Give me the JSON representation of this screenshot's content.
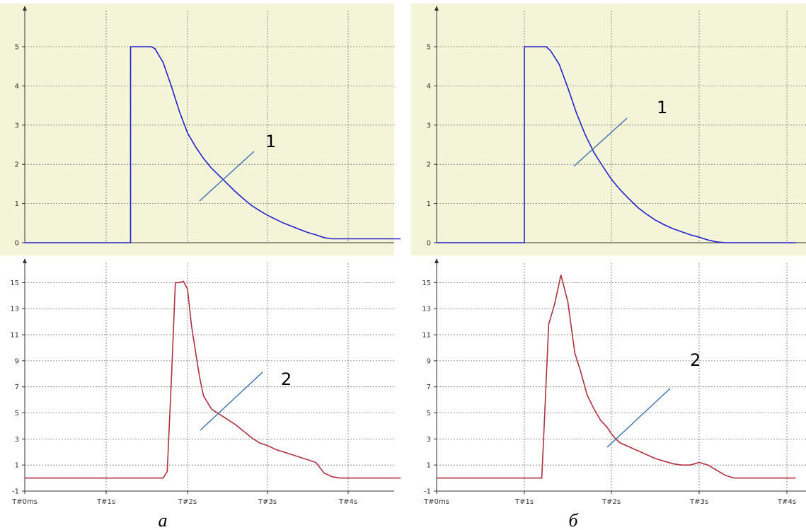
{
  "chart_data": [
    {
      "panel": "a",
      "upper": {
        "type": "line",
        "color": "#2222cc",
        "background": "#f4f4d8",
        "ylim": [
          0,
          5
        ],
        "yticks": [
          "0",
          "1",
          "2",
          "3",
          "4",
          "5"
        ],
        "xlim": [
          0,
          4.65
        ],
        "grid": true,
        "x": [
          0,
          1.3,
          1.3,
          1.55,
          1.6,
          1.7,
          1.8,
          1.9,
          2.0,
          2.1,
          2.2,
          2.3,
          2.4,
          2.5,
          2.6,
          2.7,
          2.8,
          2.9,
          3.0,
          3.1,
          3.2,
          3.3,
          3.4,
          3.5,
          3.6,
          3.7,
          3.8,
          3.9,
          4.0,
          4.65
        ],
        "values": [
          0,
          0,
          5,
          5,
          4.95,
          4.6,
          4.0,
          3.35,
          2.8,
          2.45,
          2.15,
          1.9,
          1.7,
          1.5,
          1.3,
          1.12,
          0.95,
          0.82,
          0.7,
          0.6,
          0.5,
          0.42,
          0.34,
          0.26,
          0.2,
          0.13,
          0.1,
          0.1,
          0.1,
          0.1
        ],
        "series_label": "1"
      },
      "lower": {
        "type": "line",
        "color": "#b03040",
        "background": "#ffffff",
        "ylim": [
          -1,
          16
        ],
        "yticks": [
          "-1",
          "1",
          "3",
          "5",
          "7",
          "9",
          "11",
          "13",
          "15"
        ],
        "xticks": [
          "T#0ms",
          "T#1s",
          "T#2s",
          "T#3s",
          "T#4s"
        ],
        "xlim": [
          0,
          4.65
        ],
        "grid": true,
        "x": [
          0,
          1.7,
          1.75,
          1.8,
          1.85,
          1.9,
          1.95,
          2.0,
          2.05,
          2.1,
          2.15,
          2.2,
          2.3,
          2.4,
          2.5,
          2.6,
          2.7,
          2.8,
          2.9,
          3.0,
          3.1,
          3.2,
          3.3,
          3.4,
          3.5,
          3.6,
          3.7,
          3.8,
          3.9,
          4.0,
          4.65
        ],
        "values": [
          0,
          0,
          0.5,
          7.3,
          15,
          15,
          15.1,
          14.5,
          11.7,
          9.7,
          7.8,
          6.3,
          5.3,
          4.9,
          4.5,
          4.1,
          3.6,
          3.1,
          2.7,
          2.5,
          2.2,
          2.0,
          1.8,
          1.6,
          1.4,
          1.2,
          0.4,
          0.1,
          0,
          0,
          0
        ],
        "series_label": "2"
      },
      "caption": "а"
    },
    {
      "panel": "b",
      "upper": {
        "type": "line",
        "color": "#2222cc",
        "background": "#f4f4d8",
        "ylim": [
          0,
          5
        ],
        "yticks": [
          "0",
          "1",
          "2",
          "3",
          "4",
          "5"
        ],
        "xlim": [
          0,
          4.1
        ],
        "grid": true,
        "x": [
          0,
          1.0,
          1.0,
          1.25,
          1.3,
          1.4,
          1.5,
          1.6,
          1.7,
          1.8,
          1.9,
          2.0,
          2.1,
          2.2,
          2.3,
          2.4,
          2.5,
          2.6,
          2.7,
          2.8,
          2.9,
          3.0,
          3.1,
          3.2,
          3.3,
          3.4,
          4.1
        ],
        "values": [
          0,
          0,
          5,
          5,
          4.9,
          4.55,
          3.95,
          3.3,
          2.75,
          2.3,
          1.95,
          1.62,
          1.35,
          1.12,
          0.9,
          0.73,
          0.58,
          0.46,
          0.36,
          0.28,
          0.2,
          0.14,
          0.07,
          0.02,
          0,
          0,
          0
        ],
        "series_label": "1"
      },
      "lower": {
        "type": "line",
        "color": "#b03040",
        "background": "#ffffff",
        "ylim": [
          -1,
          16
        ],
        "yticks": [
          "-1",
          "1",
          "3",
          "5",
          "7",
          "9",
          "11",
          "13",
          "15"
        ],
        "xticks": [
          "T#0ms",
          "T#1s",
          "T#2s",
          "T#3s",
          "T#4s"
        ],
        "xlim": [
          0,
          4.1
        ],
        "grid": true,
        "x": [
          0,
          1.2,
          1.22,
          1.28,
          1.35,
          1.42,
          1.5,
          1.58,
          1.65,
          1.72,
          1.8,
          1.88,
          1.95,
          2.0,
          2.05,
          2.1,
          2.2,
          2.3,
          2.4,
          2.5,
          2.6,
          2.7,
          2.8,
          2.9,
          3.0,
          3.1,
          3.2,
          3.3,
          3.4,
          3.5,
          3.6,
          4.1
        ],
        "values": [
          0,
          0,
          2.9,
          11.8,
          13.4,
          15.6,
          13.5,
          9.6,
          8.1,
          6.4,
          5.3,
          4.4,
          3.9,
          3.4,
          3.0,
          2.7,
          2.4,
          2.1,
          1.8,
          1.5,
          1.3,
          1.1,
          1.0,
          1.0,
          1.2,
          1.0,
          0.6,
          0.2,
          0,
          0,
          0,
          0
        ],
        "series_label": "2"
      },
      "caption": "б"
    }
  ]
}
